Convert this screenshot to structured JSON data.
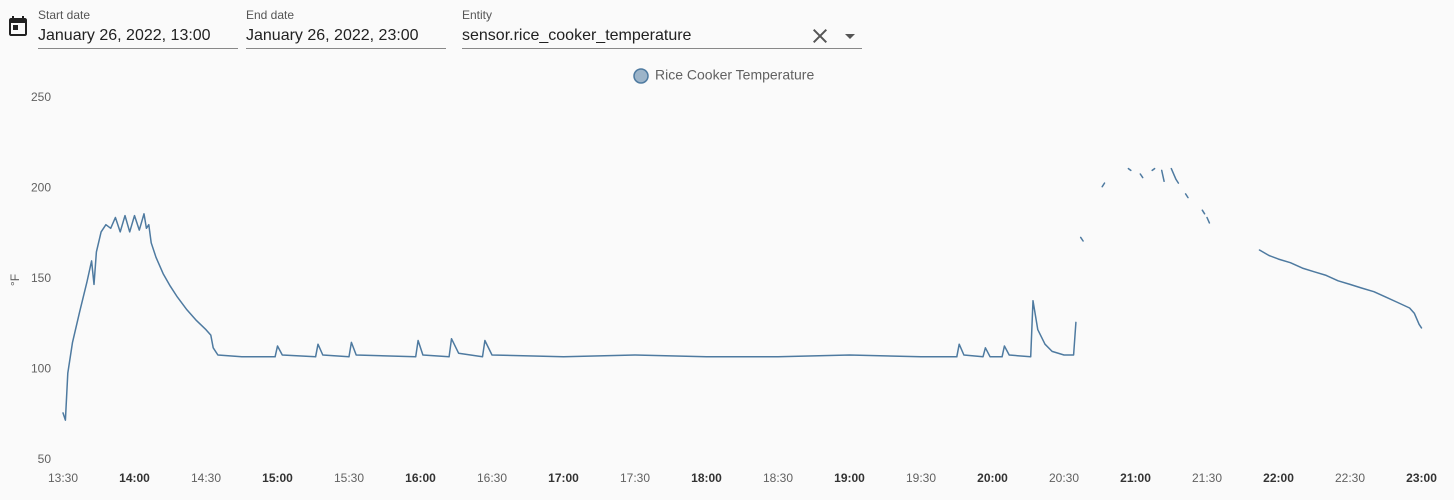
{
  "controls": {
    "start_date": {
      "label": "Start date",
      "value": "January 26, 2022, 13:00"
    },
    "end_date": {
      "label": "End date",
      "value": "January 26, 2022, 23:00"
    },
    "entity": {
      "label": "Entity",
      "value": "sensor.rice_cooker_temperature"
    }
  },
  "chart_data": {
    "type": "line",
    "y_label": "°F",
    "x": [
      "13:30",
      "13:31",
      "13:32",
      "13:34",
      "13:37",
      "13:40",
      "13:42",
      "13:43",
      "13:44",
      "13:46",
      "13:48",
      "13:50",
      "13:52",
      "13:54",
      "13:56",
      "13:58",
      "14:00",
      "14:02",
      "14:04",
      "14:05",
      "14:06",
      "14:07",
      "14:09",
      "14:12",
      "14:15",
      "14:18",
      "14:22",
      "14:26",
      "14:30",
      "14:32",
      "14:33",
      "14:35",
      "14:45",
      "14:59",
      "15:00",
      "15:02",
      "15:16",
      "15:17",
      "15:19",
      "15:30",
      "15:31",
      "15:33",
      "15:58",
      "15:59",
      "16:01",
      "16:12",
      "16:13",
      "16:16",
      "16:26",
      "16:27",
      "16:30",
      "17:00",
      "17:30",
      "18:00",
      "18:30",
      "19:00",
      "19:30",
      "19:45",
      "19:46",
      "19:48",
      "19:56",
      "19:57",
      "19:59",
      "20:04",
      "20:05",
      "20:07",
      "20:16",
      "20:17",
      "20:19",
      "20:22",
      "20:25",
      "20:30",
      "20:34",
      "20:35",
      null,
      "20:37",
      "20:38",
      null,
      "20:46",
      "20:47",
      null,
      "20:57",
      "20:58",
      null,
      "21:02",
      "21:03",
      null,
      "21:07",
      "21:08",
      null,
      "21:11",
      "21:12",
      null,
      "21:15",
      "21:17",
      "21:18",
      null,
      "21:21",
      "21:22",
      null,
      "21:28",
      "21:29",
      null,
      "21:30",
      "21:31",
      null,
      "21:52",
      "21:56",
      "22:00",
      "22:05",
      "22:10",
      "22:15",
      "22:20",
      "22:25",
      "22:30",
      "22:35",
      "22:40",
      "22:45",
      "22:50",
      "22:55",
      "22:57",
      "22:59",
      "23:00"
    ],
    "series": [
      {
        "name": "Rice Cooker Temperature",
        "color": "#4e7aa0",
        "values": [
          76,
          72,
          98,
          115,
          132,
          148,
          160,
          147,
          165,
          176,
          180,
          178,
          184,
          176,
          185,
          176,
          185,
          177,
          186,
          178,
          180,
          170,
          162,
          153,
          146,
          140,
          133,
          127,
          122,
          119,
          112,
          108,
          107,
          107,
          113,
          108,
          107,
          114,
          108,
          107,
          115,
          108,
          107,
          116,
          108,
          107,
          117,
          109,
          107,
          116,
          108,
          107,
          108,
          107,
          107,
          108,
          107,
          107,
          114,
          108,
          107,
          112,
          107,
          107,
          113,
          108,
          107,
          138,
          122,
          114,
          110,
          108,
          108,
          126,
          null,
          173,
          171,
          null,
          201,
          203,
          null,
          211,
          210,
          null,
          208,
          206,
          null,
          210,
          211,
          null,
          210,
          204,
          null,
          211,
          205,
          203,
          null,
          197,
          195,
          null,
          188,
          186,
          null,
          184,
          181,
          null,
          166,
          163,
          161,
          159,
          156,
          154,
          152,
          149,
          147,
          145,
          143,
          140,
          137,
          134,
          131,
          125,
          123
        ]
      }
    ],
    "xlim": [
      "13:30",
      "23:08"
    ],
    "ylim": [
      50,
      250
    ],
    "xticks": [
      "13:30",
      "14:00",
      "14:30",
      "15:00",
      "15:30",
      "16:00",
      "16:30",
      "17:00",
      "17:30",
      "18:00",
      "18:30",
      "19:00",
      "19:30",
      "20:00",
      "20:30",
      "21:00",
      "21:30",
      "22:00",
      "22:30",
      "23:00"
    ],
    "yticks": [
      50,
      100,
      150,
      200,
      250
    ],
    "grid": false,
    "legend": "top"
  }
}
